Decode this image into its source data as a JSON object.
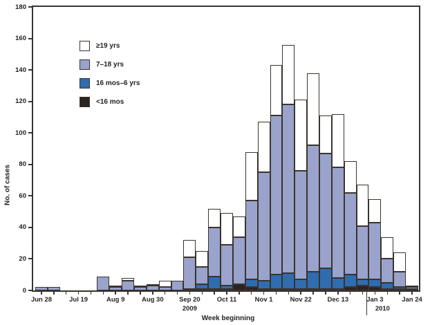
{
  "chart_data": {
    "type": "bar",
    "stacked": true,
    "title": "",
    "xlabel": "Week beginning",
    "ylabel": "No. of cases",
    "ylim": [
      0,
      180
    ],
    "y_tick_step": 20,
    "grid": false,
    "legend_position": "upper-left-inside",
    "categories": [
      "Jun 28",
      "Jul 5",
      "Jul 12",
      "Jul 19",
      "Jul 26",
      "Aug 2",
      "Aug 9",
      "Aug 16",
      "Aug 23",
      "Aug 30",
      "Sep 6",
      "Sep 13",
      "Sep 20",
      "Sep 27",
      "Oct 4",
      "Oct 11",
      "Oct 18",
      "Oct 25",
      "Nov 1",
      "Nov 8",
      "Nov 15",
      "Nov 22",
      "Nov 29",
      "Dec 6",
      "Dec 13",
      "Dec 20",
      "Dec 27",
      "Jan 3",
      "Jan 10",
      "Jan 17",
      "Jan 24"
    ],
    "x_tick_labels": [
      "Jun 28",
      "Jul 19",
      "Aug 9",
      "Aug 30",
      "Sep 20",
      "Oct 11",
      "Nov 1",
      "Nov 22",
      "Dec 13",
      "Jan 3",
      "Jan 24"
    ],
    "x_tick_every": 3,
    "year_labels": [
      {
        "text": "2009",
        "at_category": "Sep 20",
        "dx": 0
      },
      {
        "text": "2010",
        "at_category": "Jan 3",
        "dx": 11
      }
    ],
    "series": [
      {
        "name": "<16 mos",
        "color": "#2b2421",
        "values": [
          0,
          0,
          0,
          0,
          0,
          0,
          0,
          0,
          0,
          0,
          0,
          0,
          1,
          1,
          1,
          1,
          4,
          2,
          1,
          1,
          1,
          1,
          1,
          1,
          1,
          2,
          3,
          2,
          1,
          1,
          1
        ]
      },
      {
        "name": "16 mos–6 yrs",
        "color": "#2f6cb0",
        "values": [
          0,
          0,
          0,
          0,
          0,
          0,
          0,
          0,
          0,
          0,
          0,
          0,
          0,
          3,
          8,
          2,
          0,
          5,
          5,
          9,
          10,
          6,
          11,
          13,
          7,
          8,
          4,
          5,
          4,
          1,
          0
        ]
      },
      {
        "name": "7–18 yrs",
        "color": "#99a3cb",
        "values": [
          2,
          2,
          0,
          0,
          0,
          9,
          2,
          6,
          2,
          3,
          2,
          6,
          20,
          11,
          31,
          26,
          30,
          50,
          69,
          101,
          107,
          69,
          80,
          73,
          70,
          52,
          34,
          36,
          15,
          10,
          1
        ]
      },
      {
        "name": "≥19 yrs",
        "color": "#ffffff",
        "values": [
          0,
          0,
          0,
          0,
          0,
          0,
          1,
          2,
          1,
          1,
          4,
          0,
          11,
          10,
          12,
          20,
          13,
          31,
          32,
          32,
          38,
          45,
          46,
          24,
          34,
          20,
          26,
          15,
          14,
          12,
          1
        ]
      }
    ],
    "legend_order_top_to_bottom": [
      "≥19 yrs",
      "7–18 yrs",
      "16 mos–6 yrs",
      "<16 mos"
    ]
  },
  "styles": {
    "outline_color": "#3a332d",
    "text_color": "#231f20",
    "background": "#ffffff"
  }
}
